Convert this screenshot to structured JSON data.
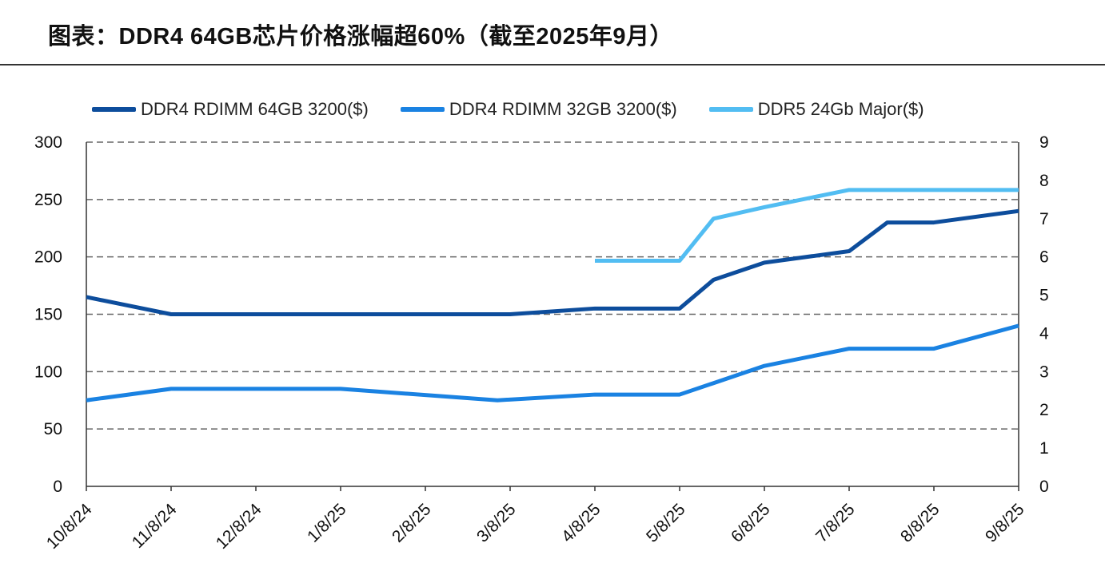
{
  "chart_data": {
    "type": "line",
    "title": "图表：DDR4 64GB芯片价格涨幅超60%（截至2025年9月）",
    "categories": [
      "10/8/24",
      "11/8/24",
      "12/8/24",
      "1/8/25",
      "2/8/25",
      "3/8/25",
      "4/8/25",
      "5/8/25",
      "6/8/25",
      "7/8/25",
      "8/8/25",
      "9/8/25"
    ],
    "y_left": {
      "ylim": [
        0,
        300
      ],
      "ticks": [
        "0",
        "50",
        "100",
        "150",
        "200",
        "250",
        "300"
      ]
    },
    "y_right": {
      "ylim": [
        0,
        9
      ],
      "ticks": [
        "0",
        "1",
        "2",
        "3",
        "4",
        "5",
        "6",
        "7",
        "8",
        "9"
      ]
    },
    "grid": "dashed horizontal",
    "legend_position": "top",
    "series": [
      {
        "name": "DDR4 RDIMM 64GB 3200($)",
        "axis": "left",
        "color": "#0d4d9c",
        "points": [
          [
            0,
            165
          ],
          [
            1,
            150
          ],
          [
            5,
            150
          ],
          [
            6,
            155
          ],
          [
            7,
            155
          ],
          [
            7.4,
            180
          ],
          [
            8,
            195
          ],
          [
            9,
            205
          ],
          [
            9.45,
            230
          ],
          [
            10,
            230
          ],
          [
            11,
            240
          ]
        ]
      },
      {
        "name": "DDR4 RDIMM 32GB 3200($)",
        "axis": "left",
        "color": "#1a82e2",
        "points": [
          [
            0,
            75
          ],
          [
            1,
            85
          ],
          [
            3,
            85
          ],
          [
            4.85,
            75
          ],
          [
            6,
            80
          ],
          [
            7,
            80
          ],
          [
            7.4,
            90
          ],
          [
            8,
            105
          ],
          [
            9,
            120
          ],
          [
            10,
            120
          ],
          [
            11,
            140
          ]
        ]
      },
      {
        "name": "DDR5 24Gb Major($)",
        "axis": "right",
        "color": "#52bdf2",
        "points": [
          [
            6,
            5.9
          ],
          [
            7,
            5.9
          ],
          [
            7.4,
            7.0
          ],
          [
            8,
            7.3
          ],
          [
            9,
            7.75
          ],
          [
            11,
            7.75
          ]
        ]
      }
    ]
  }
}
